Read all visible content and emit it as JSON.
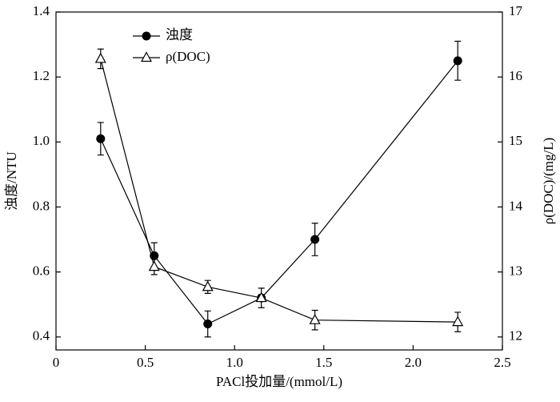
{
  "chart_data": {
    "type": "line",
    "x_label": "PACl投加量/(mmol/L)",
    "y_label": "浊度/NTU",
    "y2_label": "ρ(DOC)/(mg/L)",
    "xlim": [
      0,
      2.5
    ],
    "xticks": [
      0,
      0.5,
      {
        "value": 1,
        "label": "1.0"
      },
      1.5,
      {
        "value": 2,
        "label": "2.0"
      },
      2.5
    ],
    "ylim": [
      0.36,
      1.4
    ],
    "yticks": [
      0.4,
      0.6,
      0.8,
      {
        "value": 1,
        "label": "1.0"
      },
      1.2,
      1.4
    ],
    "y2lim": [
      11.8,
      17
    ],
    "y2ticks": [
      12,
      13,
      14,
      15,
      16,
      17
    ],
    "series": [
      {
        "name": "浊度",
        "color": "#000000",
        "marker": "circle",
        "x": [
          0.25,
          0.55,
          0.85,
          1.15,
          1.45,
          2.25
        ],
        "values": [
          1.01,
          0.65,
          0.44,
          0.52,
          0.7,
          1.25
        ],
        "errors": [
          0.05,
          0.04,
          0.04,
          0.03,
          0.05,
          0.06
        ]
      },
      {
        "name": "ρ(DOC)",
        "color": "#000000",
        "marker": "triangle",
        "axis": "y2",
        "x": [
          0.25,
          0.55,
          0.85,
          1.15,
          1.45,
          2.25
        ],
        "values": [
          16.28,
          13.08,
          12.77,
          12.6,
          12.26,
          12.23
        ],
        "errors": [
          0.15,
          0.12,
          0.1,
          0.05,
          0.15,
          0.15
        ]
      }
    ]
  }
}
